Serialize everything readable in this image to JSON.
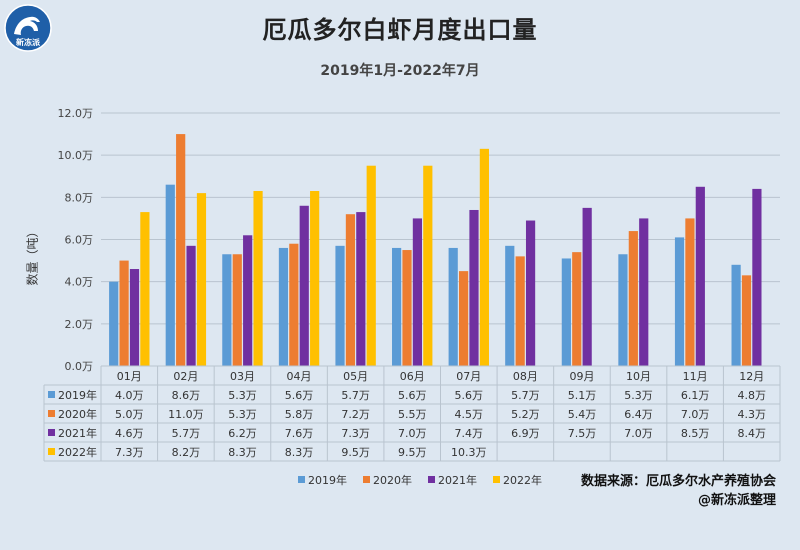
{
  "title": "厄瓜多尔白虾月度出口量",
  "subtitle": "2019年1月-2022年7月",
  "logo_text": "新冻派",
  "source": {
    "line1": "数据来源：厄瓜多尔水产养殖协会",
    "line2": "@新冻派整理"
  },
  "chart_data": {
    "type": "bar",
    "ylabel": "数量（吨）",
    "categories": [
      "01月",
      "02月",
      "03月",
      "04月",
      "05月",
      "06月",
      "07月",
      "08月",
      "09月",
      "10月",
      "11月",
      "12月"
    ],
    "yticks": [
      "0.0万",
      "2.0万",
      "4.0万",
      "6.0万",
      "8.0万",
      "10.0万",
      "12.0万"
    ],
    "ylim": [
      0,
      12
    ],
    "unit": "万",
    "grid": true,
    "legend_position": "bottom",
    "has_data_table": true,
    "series": [
      {
        "name": "2019年",
        "color": "#5b9bd5",
        "values": [
          4.0,
          8.6,
          5.3,
          5.6,
          5.7,
          5.6,
          5.6,
          5.7,
          5.1,
          5.3,
          6.1,
          4.8
        ],
        "labels": [
          "4.0万",
          "8.6万",
          "5.3万",
          "5.6万",
          "5.7万",
          "5.6万",
          "5.6万",
          "5.7万",
          "5.1万",
          "5.3万",
          "6.1万",
          "4.8万"
        ]
      },
      {
        "name": "2020年",
        "color": "#ed7d31",
        "values": [
          5.0,
          11.0,
          5.3,
          5.8,
          7.2,
          5.5,
          4.5,
          5.2,
          5.4,
          6.4,
          7.0,
          4.3
        ],
        "labels": [
          "5.0万",
          "11.0万",
          "5.3万",
          "5.8万",
          "7.2万",
          "5.5万",
          "4.5万",
          "5.2万",
          "5.4万",
          "6.4万",
          "7.0万",
          "4.3万"
        ]
      },
      {
        "name": "2021年",
        "color": "#7030a0",
        "values": [
          4.6,
          5.7,
          6.2,
          7.6,
          7.3,
          7.0,
          7.4,
          6.9,
          7.5,
          7.0,
          8.5,
          8.4
        ],
        "labels": [
          "4.6万",
          "5.7万",
          "6.2万",
          "7.6万",
          "7.3万",
          "7.0万",
          "7.4万",
          "6.9万",
          "7.5万",
          "7.0万",
          "8.5万",
          "8.4万"
        ]
      },
      {
        "name": "2022年",
        "color": "#ffc000",
        "values": [
          7.3,
          8.2,
          8.3,
          8.3,
          9.5,
          9.5,
          10.3,
          null,
          null,
          null,
          null,
          null
        ],
        "labels": [
          "7.3万",
          "8.2万",
          "8.3万",
          "8.3万",
          "9.5万",
          "9.5万",
          "10.3万",
          "",
          "",
          "",
          "",
          ""
        ]
      }
    ]
  }
}
